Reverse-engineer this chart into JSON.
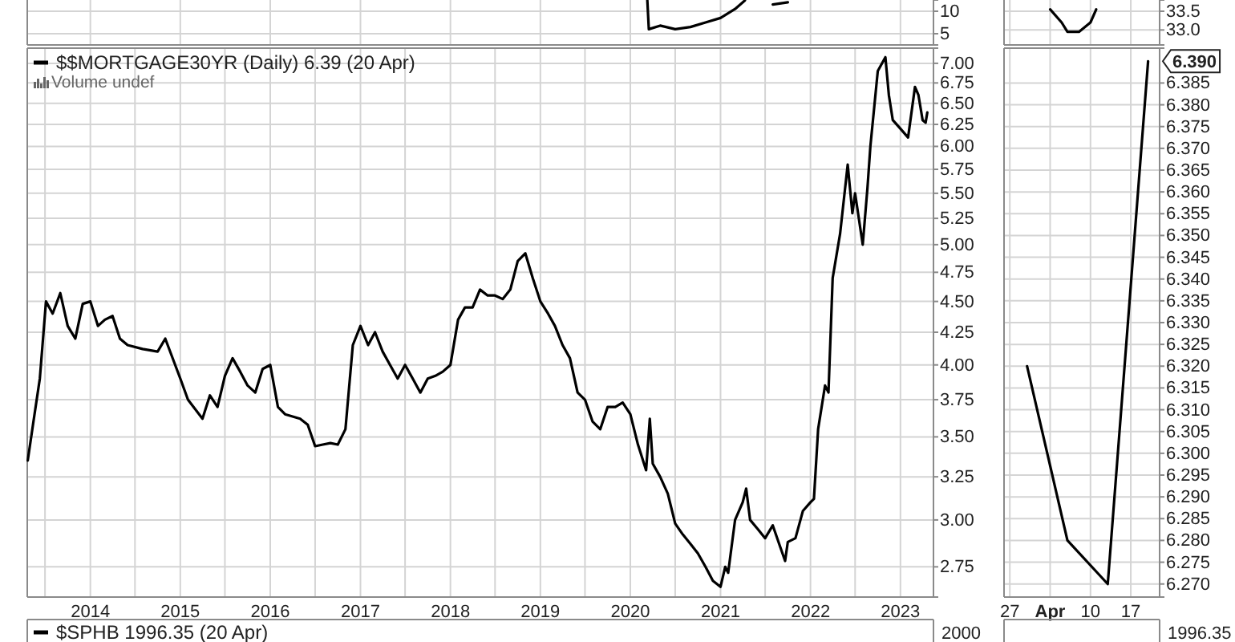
{
  "chart_data": [
    {
      "type": "line",
      "x": [
        "2020-03-10",
        "2020-03-16",
        "2020-05-01",
        "2020-07-01",
        "2020-09-01",
        "2020-11-01",
        "2021-01-01",
        "2021-03-01",
        "2021-04-10",
        "2021-05-15",
        "2021-08-01",
        "2021-10-01"
      ],
      "series": [
        {
          "color": "#000000",
          "values": [
            12.4,
            6,
            6.8,
            6,
            6.5,
            7.5,
            8.5,
            10.5,
            12.4,
            null,
            11.5,
            12
          ]
        }
      ],
      "xlim": [
        "2013-04-20",
        "2023-05-15"
      ],
      "ylim": [
        2.5,
        12.5
      ],
      "yticks": [
        5,
        10
      ],
      "xticks": [
        {
          "value": "2014-01-01",
          "label": null
        },
        {
          "value": "2015-01-01",
          "label": null
        },
        {
          "value": "2016-01-01",
          "label": null
        },
        {
          "value": "2017-01-01",
          "label": null
        },
        {
          "value": "2018-01-01",
          "label": null
        },
        {
          "value": "2019-01-01",
          "label": null
        },
        {
          "value": "2020-01-01",
          "label": null
        },
        {
          "value": "2021-01-01",
          "label": null
        },
        {
          "value": "2022-01-01",
          "label": null
        },
        {
          "value": "2023-01-01",
          "label": null
        }
      ],
      "tick_labels": "y",
      "grid": true
    },
    {
      "type": "line",
      "x": [
        "2023-04-03",
        "2023-04-05",
        "2023-04-06",
        "2023-04-08",
        "2023-04-10",
        "2023-04-11"
      ],
      "series": [
        {
          "color": "#000000",
          "values": [
            33.55,
            33.2,
            32.95,
            32.95,
            33.2,
            33.55
          ]
        }
      ],
      "xlim": [
        "2023-03-26",
        "2023-04-22"
      ],
      "ylim": [
        32.6,
        33.8
      ],
      "yticks": [
        {
          "value": 33.0,
          "label": "33.0"
        },
        {
          "value": 33.5,
          "label": "33.5"
        }
      ],
      "xticks": [
        {
          "value": "2023-03-27",
          "label": null
        },
        {
          "value": "2023-04-03",
          "label": null
        },
        {
          "value": "2023-04-10",
          "label": null
        },
        {
          "value": "2023-04-17",
          "label": null
        }
      ],
      "tick_labels": "y",
      "grid": true
    },
    {
      "type": "line",
      "legend": "top left",
      "log": true,
      "grid": true,
      "annotations": [
        "Volume undef"
      ],
      "x": [
        "2013-04-22",
        "2013-05-15",
        "2013-06-10",
        "2013-07-05",
        "2013-08-01",
        "2013-09-01",
        "2013-10-01",
        "2013-11-01",
        "2013-12-01",
        "2014-01-01",
        "2014-02-01",
        "2014-03-01",
        "2014-04-01",
        "2014-05-01",
        "2014-06-01",
        "2014-08-01",
        "2014-10-01",
        "2014-11-01",
        "2015-01-01",
        "2015-02-01",
        "2015-04-01",
        "2015-05-01",
        "2015-06-01",
        "2015-07-01",
        "2015-08-01",
        "2015-09-01",
        "2015-10-01",
        "2015-11-01",
        "2015-12-01",
        "2016-01-01",
        "2016-02-01",
        "2016-03-01",
        "2016-05-01",
        "2016-06-01",
        "2016-07-01",
        "2016-08-01",
        "2016-09-01",
        "2016-10-01",
        "2016-11-01",
        "2016-12-01",
        "2017-01-01",
        "2017-02-01",
        "2017-03-01",
        "2017-04-01",
        "2017-05-01",
        "2017-06-01",
        "2017-07-01",
        "2017-08-01",
        "2017-09-01",
        "2017-10-01",
        "2017-11-01",
        "2017-12-01",
        "2018-01-01",
        "2018-02-01",
        "2018-03-01",
        "2018-04-01",
        "2018-05-01",
        "2018-06-01",
        "2018-07-01",
        "2018-08-01",
        "2018-09-01",
        "2018-10-01",
        "2018-11-01",
        "2018-12-01",
        "2019-01-01",
        "2019-02-01",
        "2019-03-01",
        "2019-04-01",
        "2019-05-01",
        "2019-06-01",
        "2019-07-01",
        "2019-08-01",
        "2019-09-01",
        "2019-10-01",
        "2019-11-01",
        "2019-12-01",
        "2020-01-01",
        "2020-02-01",
        "2020-03-05",
        "2020-03-20",
        "2020-04-01",
        "2020-05-01",
        "2020-06-01",
        "2020-07-01",
        "2020-08-01",
        "2020-09-01",
        "2020-10-01",
        "2020-11-01",
        "2020-12-01",
        "2021-01-01",
        "2021-01-20",
        "2021-02-01",
        "2021-03-01",
        "2021-04-01",
        "2021-04-15",
        "2021-05-01",
        "2021-06-01",
        "2021-07-01",
        "2021-08-01",
        "2021-09-01",
        "2021-09-20",
        "2021-10-01",
        "2021-11-01",
        "2021-12-01",
        "2022-01-01",
        "2022-01-15",
        "2022-02-01",
        "2022-03-01",
        "2022-03-15",
        "2022-04-01",
        "2022-05-01",
        "2022-06-01",
        "2022-06-20",
        "2022-07-01",
        "2022-08-01",
        "2022-08-20",
        "2022-09-01",
        "2022-10-01",
        "2022-11-01",
        "2022-11-15",
        "2022-12-01",
        "2023-01-01",
        "2023-02-01",
        "2023-03-01",
        "2023-03-15",
        "2023-04-01",
        "2023-04-13",
        "2023-04-20"
      ],
      "series": [
        {
          "name": "$$MORTGAGE30YR (Daily) 6.39 (20 Apr)",
          "color": "#000000",
          "values": [
            3.35,
            3.6,
            3.9,
            4.5,
            4.4,
            4.57,
            4.3,
            4.2,
            4.48,
            4.5,
            4.3,
            4.35,
            4.38,
            4.2,
            4.15,
            4.12,
            4.1,
            4.2,
            3.9,
            3.75,
            3.62,
            3.78,
            3.7,
            3.92,
            4.05,
            3.95,
            3.85,
            3.8,
            3.97,
            4.0,
            3.7,
            3.65,
            3.62,
            3.58,
            3.44,
            3.45,
            3.46,
            3.45,
            3.55,
            4.15,
            4.3,
            4.15,
            4.25,
            4.1,
            4.0,
            3.9,
            4.0,
            3.9,
            3.8,
            3.9,
            3.92,
            3.95,
            4.0,
            4.35,
            4.45,
            4.45,
            4.6,
            4.55,
            4.55,
            4.52,
            4.6,
            4.85,
            4.92,
            4.7,
            4.5,
            4.4,
            4.3,
            4.15,
            4.05,
            3.8,
            3.75,
            3.6,
            3.55,
            3.7,
            3.7,
            3.73,
            3.65,
            3.45,
            3.29,
            3.62,
            3.33,
            3.25,
            3.15,
            2.98,
            2.92,
            2.87,
            2.82,
            2.75,
            2.68,
            2.65,
            2.75,
            2.72,
            3.0,
            3.1,
            3.18,
            3.0,
            2.95,
            2.9,
            2.97,
            2.85,
            2.78,
            2.88,
            2.9,
            3.05,
            3.1,
            3.12,
            3.55,
            3.85,
            3.8,
            4.7,
            5.1,
            5.8,
            5.3,
            5.5,
            5.0,
            5.55,
            6.0,
            6.9,
            7.08,
            6.6,
            6.3,
            6.2,
            6.1,
            6.7,
            6.6,
            6.3,
            6.27,
            6.39
          ]
        }
      ],
      "xlim": [
        "2013-04-20",
        "2023-05-15"
      ],
      "ylim": [
        2.6,
        7.2
      ],
      "yticks": [
        {
          "value": 2.75,
          "label": "2.75"
        },
        {
          "value": 3.0,
          "label": "3.00"
        },
        {
          "value": 3.25,
          "label": "3.25"
        },
        {
          "value": 3.5,
          "label": "3.50"
        },
        {
          "value": 3.75,
          "label": "3.75"
        },
        {
          "value": 4.0,
          "label": "4.00"
        },
        {
          "value": 4.25,
          "label": "4.25"
        },
        {
          "value": 4.5,
          "label": "4.50"
        },
        {
          "value": 4.75,
          "label": "4.75"
        },
        {
          "value": 5.0,
          "label": "5.00"
        },
        {
          "value": 5.25,
          "label": "5.25"
        },
        {
          "value": 5.5,
          "label": "5.50"
        },
        {
          "value": 5.75,
          "label": "5.75"
        },
        {
          "value": 6.0,
          "label": "6.00"
        },
        {
          "value": 6.25,
          "label": "6.25"
        },
        {
          "value": 6.5,
          "label": "6.50"
        },
        {
          "value": 6.75,
          "label": "6.75"
        },
        {
          "value": 7.0,
          "label": "7.00"
        }
      ],
      "xticks": [
        {
          "value": "2013-07-01",
          "label": null
        },
        {
          "value": "2014-01-01",
          "label": "2014"
        },
        {
          "value": "2014-07-01",
          "label": null
        },
        {
          "value": "2015-01-01",
          "label": "2015"
        },
        {
          "value": "2015-07-01",
          "label": null
        },
        {
          "value": "2016-01-01",
          "label": "2016"
        },
        {
          "value": "2016-07-01",
          "label": null
        },
        {
          "value": "2017-01-01",
          "label": "2017"
        },
        {
          "value": "2017-07-01",
          "label": null
        },
        {
          "value": "2018-01-01",
          "label": "2018"
        },
        {
          "value": "2018-07-01",
          "label": null
        },
        {
          "value": "2019-01-01",
          "label": "2019"
        },
        {
          "value": "2019-07-01",
          "label": null
        },
        {
          "value": "2020-01-01",
          "label": "2020"
        },
        {
          "value": "2020-07-01",
          "label": null
        },
        {
          "value": "2021-01-01",
          "label": "2021"
        },
        {
          "value": "2021-07-01",
          "label": null
        },
        {
          "value": "2022-01-01",
          "label": "2022"
        },
        {
          "value": "2022-07-01",
          "label": null
        },
        {
          "value": "2023-01-01",
          "label": "2023"
        }
      ]
    },
    {
      "type": "line",
      "grid": true,
      "x": [
        "2023-03-30",
        "2023-04-06",
        "2023-04-13",
        "2023-04-20"
      ],
      "series": [
        {
          "color": "#000000",
          "values": [
            6.32,
            6.28,
            6.27,
            6.39
          ],
          "value_labels": [
            null,
            null,
            null,
            "6.390"
          ]
        }
      ],
      "xlim": [
        "2023-03-26",
        "2023-04-22"
      ],
      "ylim": [
        6.267,
        6.393
      ],
      "yticks": [
        {
          "value": 6.27,
          "label": "6.270"
        },
        {
          "value": 6.275,
          "label": "6.275"
        },
        {
          "value": 6.28,
          "label": "6.280"
        },
        {
          "value": 6.285,
          "label": "6.285"
        },
        {
          "value": 6.29,
          "label": "6.290"
        },
        {
          "value": 6.295,
          "label": "6.295"
        },
        {
          "value": 6.3,
          "label": "6.300"
        },
        {
          "value": 6.305,
          "label": "6.305"
        },
        {
          "value": 6.31,
          "label": "6.310"
        },
        {
          "value": 6.315,
          "label": "6.315"
        },
        {
          "value": 6.32,
          "label": "6.320"
        },
        {
          "value": 6.325,
          "label": "6.325"
        },
        {
          "value": 6.33,
          "label": "6.330"
        },
        {
          "value": 6.335,
          "label": "6.335"
        },
        {
          "value": 6.34,
          "label": "6.340"
        },
        {
          "value": 6.345,
          "label": "6.345"
        },
        {
          "value": 6.35,
          "label": "6.350"
        },
        {
          "value": 6.355,
          "label": "6.355"
        },
        {
          "value": 6.36,
          "label": "6.360"
        },
        {
          "value": 6.365,
          "label": "6.365"
        },
        {
          "value": 6.37,
          "label": "6.370"
        },
        {
          "value": 6.375,
          "label": "6.375"
        },
        {
          "value": 6.38,
          "label": "6.380"
        },
        {
          "value": 6.385,
          "label": "6.385"
        }
      ],
      "xticks": [
        {
          "value": "2023-03-27",
          "label": "27"
        },
        {
          "value": "2023-04-03",
          "label": "Apr"
        },
        {
          "value": "2023-04-10",
          "label": "10"
        },
        {
          "value": "2023-04-17",
          "label": "17"
        }
      ]
    },
    {
      "type": "other",
      "title": "$SPHB 1996.35 (20 Apr)",
      "annotations": [
        "2000"
      ]
    },
    {
      "type": "other",
      "annotations": [
        "1996.35"
      ]
    }
  ]
}
